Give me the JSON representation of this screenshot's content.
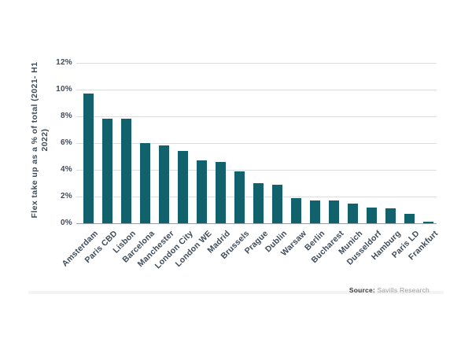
{
  "chart_data": {
    "type": "bar",
    "title": "",
    "xlabel": "",
    "ylabel": "Flex take up as a % of total (2021- H1 2022)",
    "ylabel_lines": [
      "Flex take up as a % of total (2021- H1",
      "2022)"
    ],
    "categories": [
      "Amsterdam",
      "Paris CBD",
      "Lisbon",
      "Barcelona",
      "Manchester",
      "London City",
      "London WE",
      "Madrid",
      "Brussels",
      "Prague",
      "Dublin",
      "Warsaw",
      "Berlin",
      "Bucharest",
      "Munich",
      "Dusseldorf",
      "Hamburg",
      "Paris LD",
      "Frankfurt"
    ],
    "values": [
      9.7,
      7.8,
      7.8,
      6.0,
      5.8,
      5.4,
      4.7,
      4.6,
      3.9,
      3.0,
      2.9,
      1.9,
      1.7,
      1.7,
      1.5,
      1.2,
      1.1,
      0.7,
      0.1
    ],
    "ylim": [
      0,
      12
    ],
    "ytick_step": 2,
    "ytick_labels": [
      "0%",
      "2%",
      "4%",
      "6%",
      "8%",
      "10%",
      "12%"
    ],
    "grid": true,
    "legend": null,
    "bar_color": "#11626d"
  },
  "colors": {
    "bar": "#11626d",
    "gridline": "#dadcdd",
    "axis_line": "#99a1a7",
    "label_text": "#3e4b59",
    "source_label": "#3b3b3b",
    "source_text": "#9b9b9b"
  },
  "source": {
    "label": "Source:",
    "text": " Savills Research"
  }
}
